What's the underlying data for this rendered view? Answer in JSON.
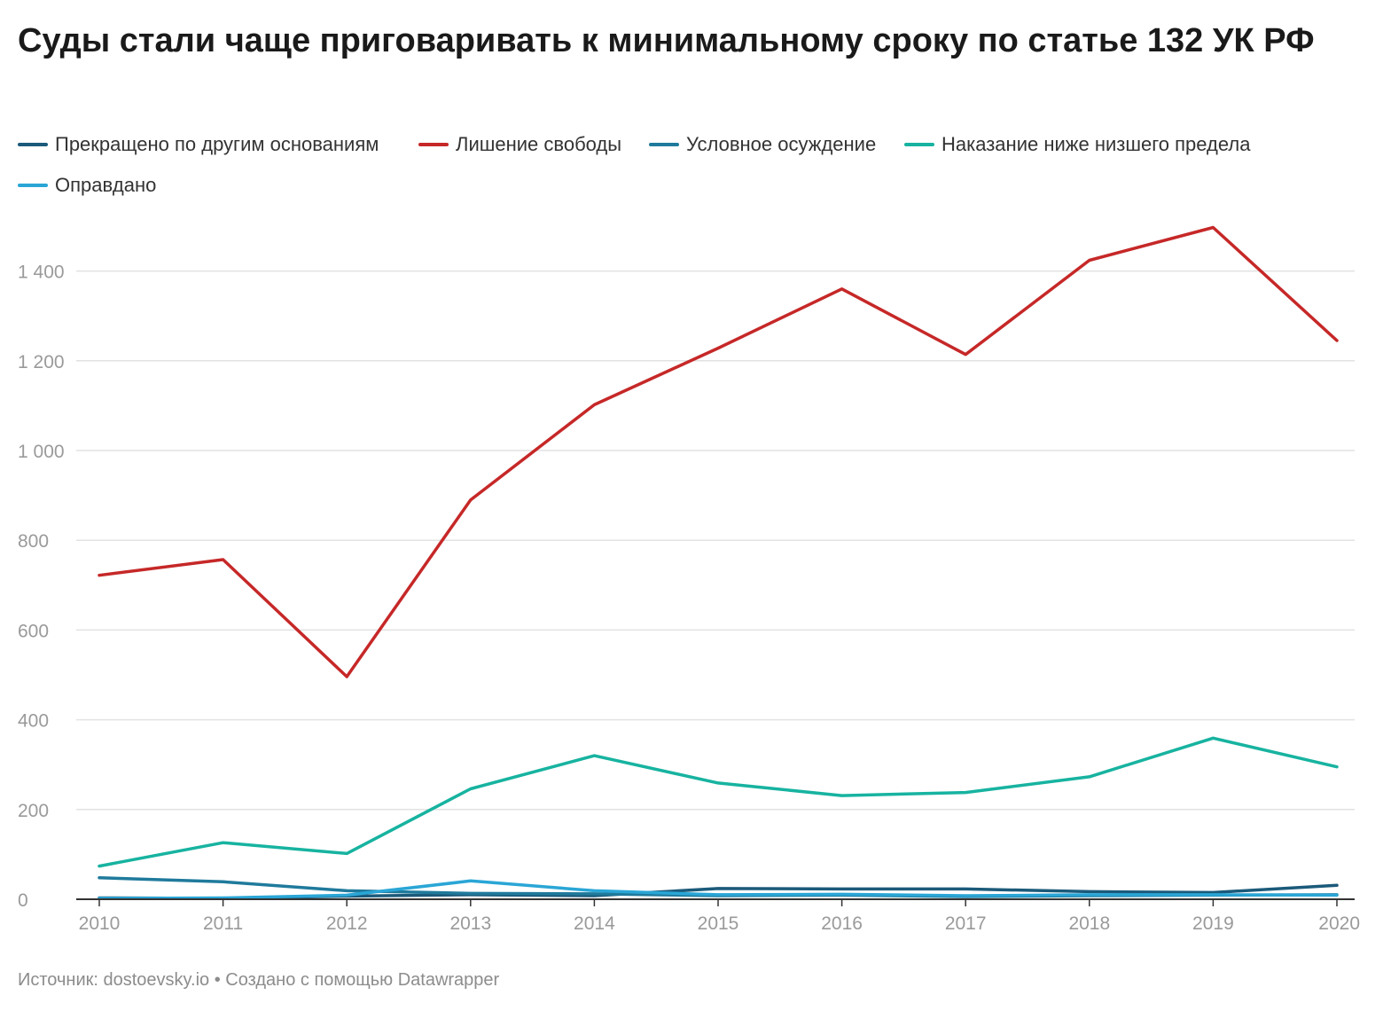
{
  "chart_data": {
    "type": "line",
    "title": "Суды стали чаще приговаривать к минимальному сроку по статье 132 УК РФ",
    "x": [
      "2010",
      "2011",
      "2012",
      "2013",
      "2014",
      "2015",
      "2016",
      "2017",
      "2018",
      "2019",
      "2020"
    ],
    "ylim": [
      0,
      1500
    ],
    "yticks": [
      0,
      200,
      400,
      600,
      800,
      1000,
      1200,
      1400
    ],
    "ytick_labels": [
      "0",
      "200",
      "400",
      "600",
      "800",
      "1 000",
      "1 200",
      "1 400"
    ],
    "grid": true,
    "legend_position": "top-left",
    "series": [
      {
        "name": "Прекращено по другим основаниям",
        "color": "#1b5a7a",
        "values": [
          3,
          2,
          7,
          10,
          8,
          24,
          23,
          23,
          17,
          15,
          31
        ]
      },
      {
        "name": "Лишение свободы",
        "color": "#c62828",
        "values": [
          722,
          757,
          496,
          890,
          1102,
          1228,
          1360,
          1214,
          1424,
          1497,
          1245
        ]
      },
      {
        "name": "Условное осуждение",
        "color": "#1f7a9c",
        "values": [
          48,
          39,
          19,
          13,
          12,
          8,
          9,
          6,
          8,
          9,
          10
        ]
      },
      {
        "name": "Наказание ниже низшего предела",
        "color": "#17b3a0",
        "values": [
          74,
          126,
          102,
          246,
          320,
          259,
          231,
          238,
          273,
          359,
          295
        ]
      },
      {
        "name": "Оправдано",
        "color": "#2aa6d6",
        "values": [
          2,
          3,
          9,
          41,
          19,
          10,
          11,
          8,
          10,
          10,
          9
        ]
      }
    ]
  },
  "footer": {
    "source": "Источник: dostoevsky.io • Создано с помощью Datawrapper"
  }
}
